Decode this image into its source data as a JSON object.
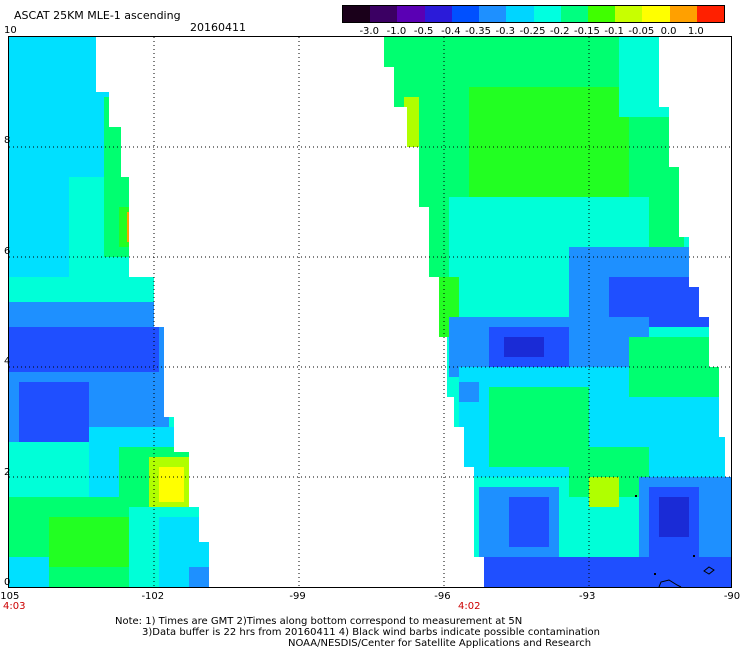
{
  "header": {
    "title": "ASCAT 25KM MLE-1 ascending",
    "date": "20160411"
  },
  "colorbar": {
    "labels": [
      "-3.0",
      "-1.0",
      "-0.5",
      "-0.4",
      "-0.35",
      "-0.3",
      "-0.25",
      "-0.2",
      "-0.15",
      "-0.1",
      "-0.05",
      "0.0",
      "1.0"
    ],
    "colors": [
      "#1a001a",
      "#3b0063",
      "#5a00b4",
      "#2b1bd9",
      "#0050ff",
      "#1e90ff",
      "#00d5ff",
      "#00ffe0",
      "#00ff80",
      "#40ff00",
      "#c8ff00",
      "#ffff00",
      "#ffa000",
      "#ff2000"
    ]
  },
  "axes": {
    "x_ticks": [
      "-105",
      "-102",
      "-99",
      "-96",
      "-93",
      "-90"
    ],
    "y_ticks": [
      "0",
      "2",
      "4",
      "6",
      "8",
      "10"
    ]
  },
  "pass_times": [
    "4:03",
    "4:02"
  ],
  "notes": [
    "Note: 1) Times are GMT 2)Times along bottom correspond to measurement at 5N",
    "3)Data buffer is 22 hrs from 20160411 4) Black wind barbs indicate possible contamination",
    "NOAA/NESDIS/Center for Satellite Applications and Research"
  ],
  "palette": {
    "blue": "#1f4fff",
    "deep_blue": "#1a2bd6",
    "light_blue": "#1e90ff",
    "cyan": "#00e0ff",
    "aqua": "#00ffd8",
    "green": "#00ff70",
    "bright_green": "#22ff22",
    "yellow_green": "#b0ff00",
    "yellow": "#ffff00",
    "orange": "#ffa000"
  }
}
